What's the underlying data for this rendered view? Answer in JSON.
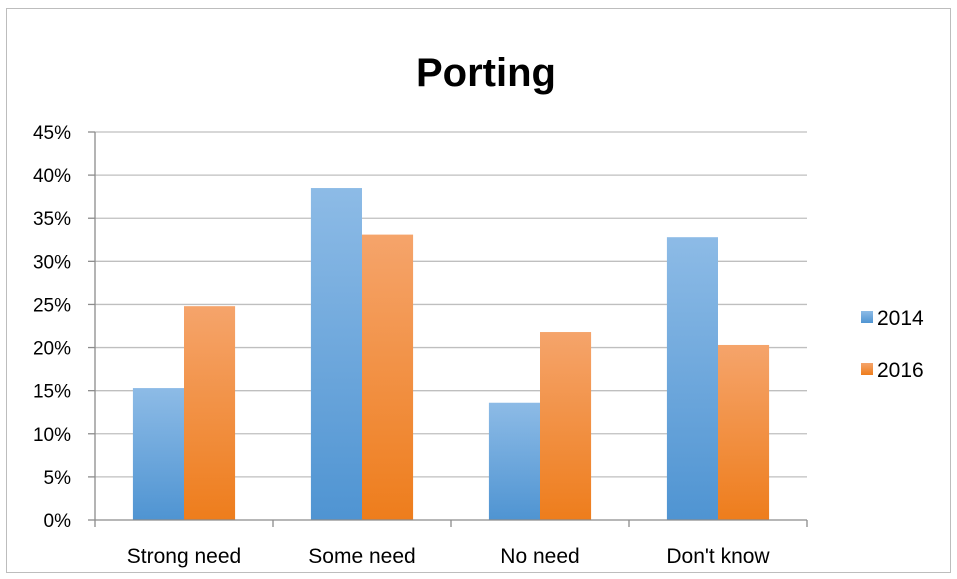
{
  "chart_data": {
    "type": "bar",
    "title": "Porting",
    "xlabel": "",
    "ylabel": "",
    "categories": [
      "Strong need",
      "Some need",
      "No need",
      "Don't know"
    ],
    "series": [
      {
        "name": "2014",
        "values": [
          15.3,
          38.5,
          13.6,
          32.8
        ],
        "color": "#5b9bd5"
      },
      {
        "name": "2016",
        "values": [
          24.8,
          33.1,
          21.8,
          20.3
        ],
        "color": "#f58a2a"
      }
    ],
    "ylim": [
      0,
      45
    ],
    "yticks": [
      0,
      5,
      10,
      15,
      20,
      25,
      30,
      35,
      40,
      45
    ],
    "ytick_labels": [
      "0%",
      "5%",
      "10%",
      "15%",
      "20%",
      "25%",
      "30%",
      "35%",
      "40%",
      "45%"
    ],
    "grid": true,
    "legend_position": "right"
  }
}
